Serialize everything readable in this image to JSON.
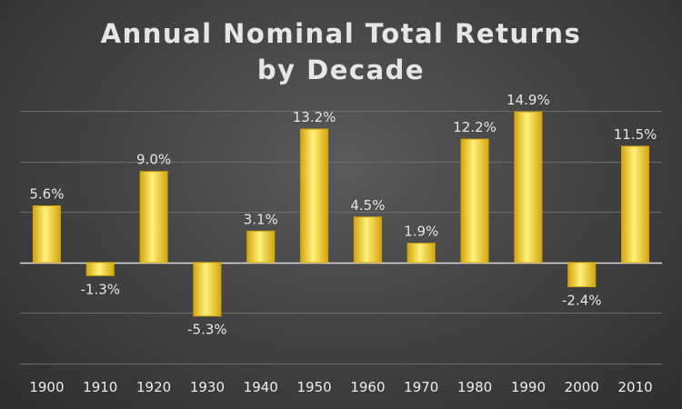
{
  "chart_data": {
    "type": "bar",
    "title_line1": "Annual Nominal Total Returns",
    "title_line2": "by Decade",
    "categories": [
      "1900",
      "1910",
      "1920",
      "1930",
      "1940",
      "1950",
      "1960",
      "1970",
      "1980",
      "1990",
      "2000",
      "2010"
    ],
    "values": [
      5.6,
      -1.3,
      9.0,
      -5.3,
      3.1,
      13.2,
      4.5,
      1.9,
      12.2,
      14.9,
      -2.4,
      11.5
    ],
    "data_labels": [
      "5.6%",
      "-1.3%",
      "9.0%",
      "-5.3%",
      "3.1%",
      "13.2%",
      "4.5%",
      "1.9%",
      "12.2%",
      "14.9%",
      "-2.4%",
      "11.5%"
    ],
    "ylim": [
      -10,
      15
    ],
    "grid": true,
    "xlabel": "",
    "ylabel": "",
    "colors": {
      "bar": "#f5cf2e",
      "bar_light": "#fff27a",
      "bar_dark": "#d4a50e",
      "background": "#454545"
    }
  }
}
